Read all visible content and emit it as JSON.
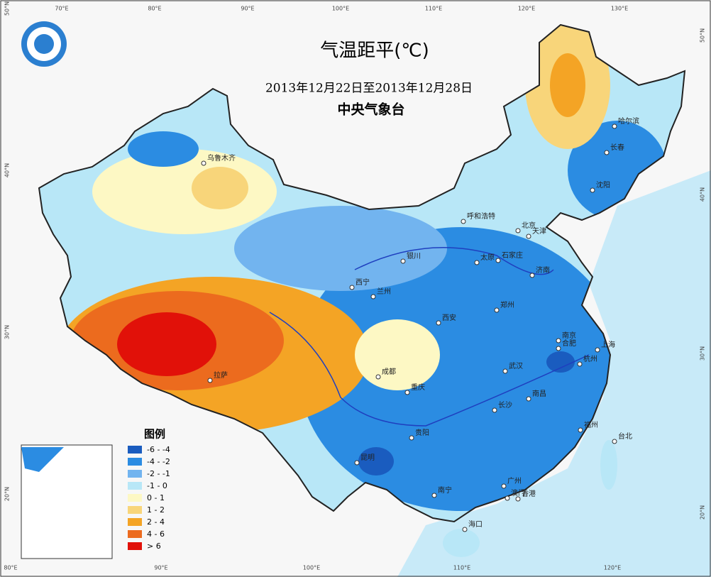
{
  "header": {
    "title": "气温距平(℃)",
    "subtitle": "2013年12月22日至2013年12月28日",
    "organization": "中央气象台"
  },
  "legend": {
    "title": "图例",
    "items": [
      {
        "label": "-6 - -4",
        "color": "#1a5cbf"
      },
      {
        "label": "-4 - -2",
        "color": "#2b8ce2"
      },
      {
        "label": "-2 - -1",
        "color": "#72b4ef"
      },
      {
        "label": "-1 - 0",
        "color": "#b8e7f7"
      },
      {
        "label": "0 - 1",
        "color": "#fdf8c4"
      },
      {
        "label": "1 - 2",
        "color": "#f8d57a"
      },
      {
        "label": "2 - 4",
        "color": "#f4a425"
      },
      {
        "label": "4 - 6",
        "color": "#ec6b1e"
      },
      {
        "label": "> 6",
        "color": "#e11109"
      }
    ]
  },
  "graticule": {
    "top": [
      "70°E",
      "80°E",
      "90°E",
      "100°E",
      "110°E",
      "120°E",
      "130°E"
    ],
    "bottom": [
      "80°E",
      "90°E",
      "100°E",
      "110°E",
      "120°E"
    ],
    "left": [
      "50°N",
      "40°N",
      "30°N",
      "20°N"
    ],
    "right": [
      "50°N",
      "40°N",
      "30°N",
      "20°N"
    ]
  },
  "cities": [
    "乌鲁木齐",
    "哈尔滨",
    "长春",
    "沈阳",
    "呼和浩特",
    "北京",
    "天津",
    "银川",
    "太原",
    "石家庄",
    "济南",
    "西宁",
    "兰州",
    "郑州",
    "西安",
    "南京",
    "合肥",
    "上海",
    "杭州",
    "武汉",
    "成都",
    "重庆",
    "长沙",
    "南昌",
    "拉萨",
    "贵阳",
    "福州",
    "台北",
    "昆明",
    "南宁",
    "广州",
    "澳门",
    "香港",
    "海口"
  ]
}
